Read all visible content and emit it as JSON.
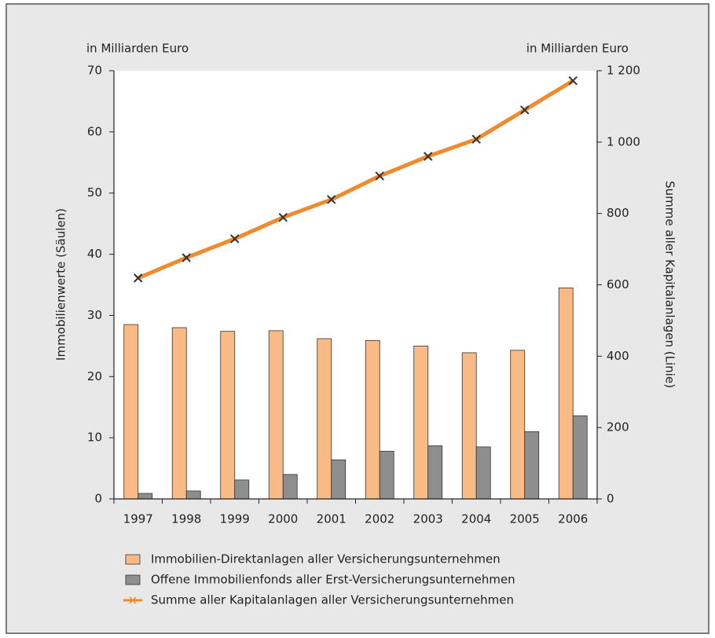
{
  "chart_data": {
    "type": "bar_line",
    "categories": [
      "1997",
      "1998",
      "1999",
      "2000",
      "2001",
      "2002",
      "2003",
      "2004",
      "2005",
      "2006"
    ],
    "ylabel": "Immobilienwerte (Säulen)",
    "y2label": "Summe aller Kapitalanlagen (Linie)",
    "yunit": "in Milliarden Euro",
    "y2unit": "in Milliarden Euro",
    "ylim": [
      0,
      70
    ],
    "yticks": [
      0,
      10,
      20,
      30,
      40,
      50,
      60,
      70
    ],
    "y2lim": [
      0,
      1200
    ],
    "y2ticks": [
      0,
      200,
      400,
      600,
      800,
      {
        "value": 1000,
        "label": "1 000"
      },
      {
        "value": 1200,
        "label": "1 200"
      }
    ],
    "series": [
      {
        "name": "Immobilien-Direktanlagen aller Versicherungsunternehmen",
        "color": "#f9bb86",
        "type": "bar",
        "values": [
          28.5,
          28.0,
          27.4,
          27.5,
          26.2,
          25.9,
          25.0,
          23.9,
          24.3,
          34.5
        ]
      },
      {
        "name": "Offene Immobilienfonds aller Erst-Versicherungsunternehmen",
        "color": "#8e8e8e",
        "type": "bar",
        "values": [
          0.9,
          1.3,
          3.1,
          4.0,
          6.4,
          7.8,
          8.7,
          8.5,
          11.0,
          13.6
        ]
      },
      {
        "name": "Summe aller Kapitalanlagen aller Versicherungsunternehmen",
        "color": "#f08a2c",
        "type": "line",
        "axis": "y2",
        "values": [
          619,
          676,
          729,
          789,
          839,
          905,
          960,
          1008,
          1090,
          1172
        ]
      }
    ]
  }
}
